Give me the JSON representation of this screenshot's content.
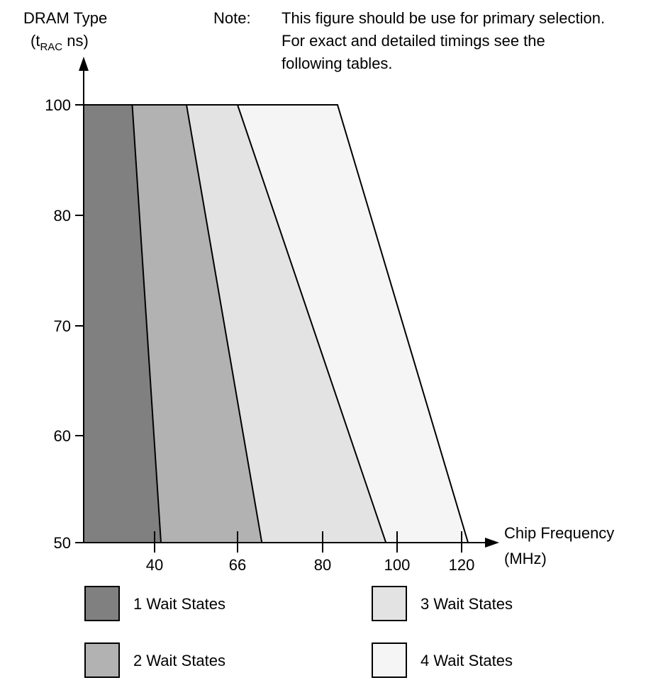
{
  "chart_data": {
    "type": "area",
    "title": "",
    "ylabel_line1": "DRAM Type",
    "ylabel_prefix": "(t",
    "ylabel_sub": "RAC",
    "ylabel_suffix": " ns)",
    "xlabel_line1": "Chip Frequency",
    "xlabel_line2": "(MHz)",
    "note_label": "Note:",
    "note_lines": [
      "This figure should be use for primary selection.",
      "For exact and detailed timings see the",
      "following tables."
    ],
    "y_ticks": [
      {
        "value": 100,
        "label": "100"
      },
      {
        "value": 80,
        "label": "80"
      },
      {
        "value": 70,
        "label": "70"
      },
      {
        "value": 60,
        "label": "60"
      },
      {
        "value": 50,
        "label": "50"
      }
    ],
    "x_ticks": [
      {
        "value": 40,
        "label": "40"
      },
      {
        "value": 66,
        "label": "66"
      },
      {
        "value": 80,
        "label": "80"
      },
      {
        "value": 100,
        "label": "100"
      },
      {
        "value": 120,
        "label": "120"
      }
    ],
    "series": [
      {
        "name": "1 Wait States",
        "color": "#808080",
        "freq_at_100ns": 33,
        "freq_at_50ns": 42
      },
      {
        "name": "2 Wait States",
        "color": "#b2b2b2",
        "freq_at_100ns": 50,
        "freq_at_50ns": 70
      },
      {
        "name": "3 Wait States",
        "color": "#e3e3e3",
        "freq_at_100ns": 66,
        "freq_at_50ns": 97
      },
      {
        "name": "4 Wait States",
        "color": "#f5f5f5",
        "freq_at_100ns": 84,
        "freq_at_50ns": 122
      }
    ],
    "legend_position": "bottom",
    "grid": false
  }
}
